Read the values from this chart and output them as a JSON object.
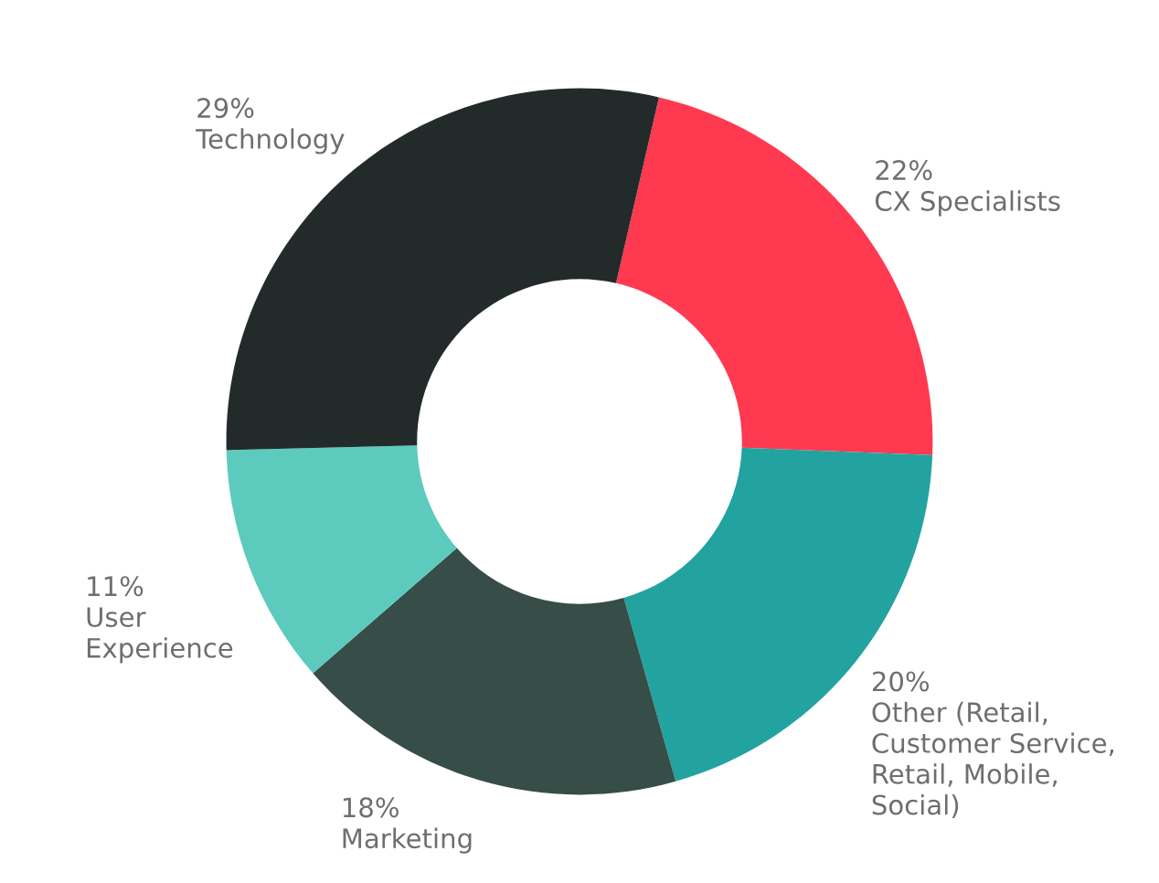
{
  "chart_data": {
    "type": "donut",
    "categories": [
      "CX Specialists",
      "Other (Retail,\nCustomer Service,\nRetail, Mobile,\nSocial)",
      "Marketing",
      "User\nExperience",
      "Technology"
    ],
    "values": [
      22,
      20,
      18,
      11,
      29
    ],
    "value_labels": [
      "22%",
      "20%",
      "18%",
      "11%",
      "29%"
    ],
    "colors": [
      "#ff3a50",
      "#22a3a0",
      "#364d48",
      "#5ccbbd",
      "#222b2a"
    ],
    "legend": false
  }
}
